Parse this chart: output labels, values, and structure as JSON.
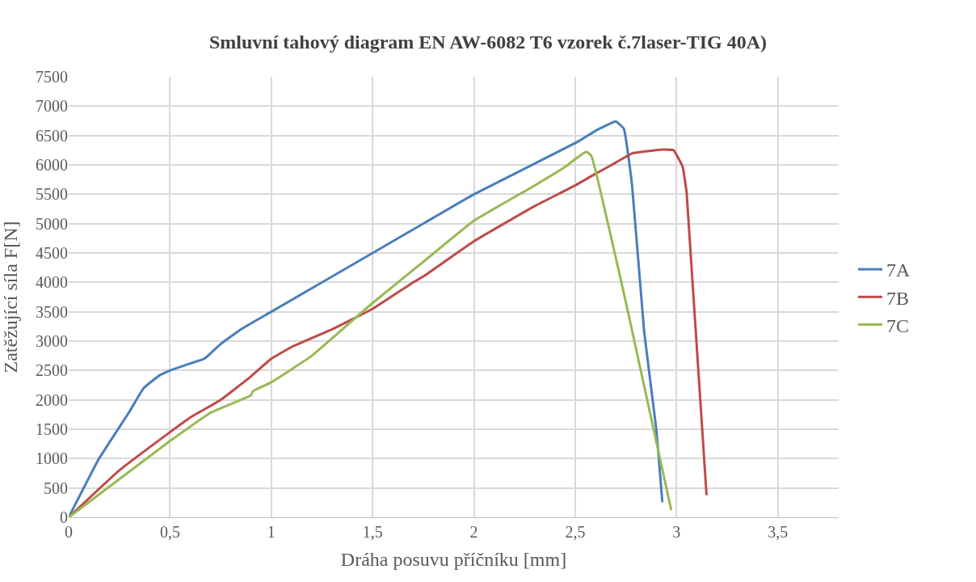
{
  "chart_data": {
    "type": "line",
    "title": "Smluvní tahový diagram EN AW-6082 T6 vzorek č.7laser-TIG 40A)",
    "xlabel": "Dráha posuvu příčníku [mm]",
    "ylabel": "Zatěžující síla F[N]",
    "xlim": [
      0,
      3.8
    ],
    "xticks": [
      0,
      {
        "value": 0.5,
        "label": "0,5"
      },
      1,
      {
        "value": 1.5,
        "label": "1,5"
      },
      2,
      {
        "value": 2.5,
        "label": "2,5"
      },
      3,
      {
        "value": 3.5,
        "label": "3,5"
      }
    ],
    "ylim": [
      0,
      7500
    ],
    "yticks": [
      0,
      500,
      1000,
      1500,
      2000,
      2500,
      3000,
      3500,
      4000,
      4500,
      5000,
      5500,
      6000,
      6500,
      7000,
      7500
    ],
    "grid": true,
    "legend": "right",
    "marker": "none",
    "line_style": "solid",
    "series": [
      {
        "name": "7A",
        "color": "#4a7ebb",
        "x": [
          0,
          0.15,
          0.3,
          0.37,
          0.45,
          0.5,
          0.6,
          0.67,
          0.75,
          0.85,
          1,
          1.5,
          1.8,
          2,
          2.51,
          2.6,
          2.7,
          2.74,
          2.78,
          2.84,
          2.9,
          2.93
        ],
        "values": [
          0,
          1000,
          1800,
          2200,
          2420,
          2500,
          2620,
          2700,
          2950,
          3200,
          3500,
          4500,
          5100,
          5500,
          6390,
          6580,
          6740,
          6615,
          5670,
          3165,
          1500,
          255
        ]
      },
      {
        "name": "7B",
        "color": "#be4b48",
        "x": [
          0,
          0.25,
          0.5,
          0.6,
          0.75,
          0.9,
          1,
          1.1,
          1.3,
          1.5,
          1.7,
          1.75,
          2,
          2.3,
          2.5,
          2.6,
          2.68,
          2.78,
          2.93,
          2.985,
          3.03,
          3.05,
          3.148
        ],
        "values": [
          0,
          800,
          1450,
          1700,
          2000,
          2400,
          2700,
          2900,
          3200,
          3550,
          4000,
          4100,
          4700,
          5300,
          5650,
          5850,
          6000,
          6195,
          6260,
          6250,
          5970,
          5520,
          375
        ]
      },
      {
        "name": "7C",
        "color": "#98b954",
        "x": [
          0,
          0.5,
          0.7,
          0.85,
          0.9,
          0.91,
          1,
          1.2,
          1.5,
          1.75,
          2,
          2.3,
          2.46,
          2.5,
          2.555,
          2.58,
          2.75,
          2.974
        ],
        "values": [
          0,
          1300,
          1780,
          2000,
          2080,
          2150,
          2300,
          2750,
          3650,
          4350,
          5050,
          5650,
          5990,
          6100,
          6225,
          6150,
          3660,
          120
        ]
      }
    ]
  }
}
